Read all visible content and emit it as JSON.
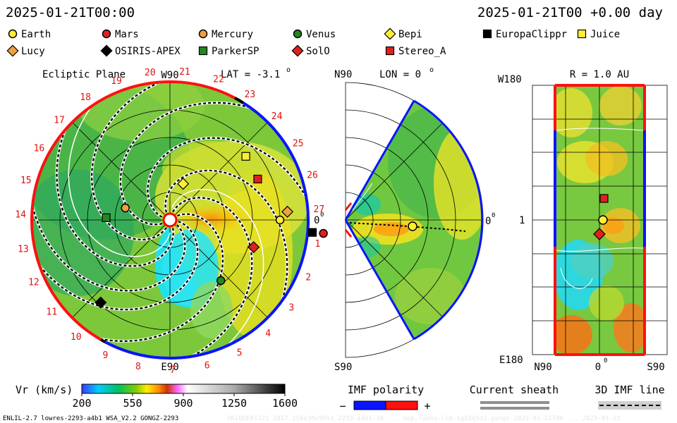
{
  "header": {
    "datetime_left": "2025-01-21T00:00",
    "datetime_right": "2025-01-21T00 +0.00 day"
  },
  "legend": [
    {
      "name": "Earth",
      "marker": "circle",
      "color": "#ffee33"
    },
    {
      "name": "Mars",
      "marker": "circle",
      "color": "#e02020"
    },
    {
      "name": "Mercury",
      "marker": "circle",
      "color": "#f0a040"
    },
    {
      "name": "Venus",
      "marker": "circle",
      "color": "#228822"
    },
    {
      "name": "Bepi",
      "marker": "diamond",
      "color": "#ffee33"
    },
    {
      "name": "EuropaClippr",
      "marker": "square",
      "color": "#000000"
    },
    {
      "name": "Juice",
      "marker": "square",
      "color": "#ffee33"
    },
    {
      "name": "Lucy",
      "marker": "diamond",
      "color": "#f0a040"
    },
    {
      "name": "OSIRIS-APEX",
      "marker": "diamond",
      "color": "#000000"
    },
    {
      "name": "ParkerSP",
      "marker": "square",
      "color": "#228822"
    },
    {
      "name": "SolO",
      "marker": "diamond",
      "color": "#e02020"
    },
    {
      "name": "Stereo_A",
      "marker": "square",
      "color": "#e02020"
    }
  ],
  "panels": {
    "ecliptic": {
      "title": "Ecliptic Plane",
      "top_label": "W90",
      "bottom_label": "E90",
      "right_label": "0",
      "lat_label": "LAT = -3.1",
      "carrington_ticks": [
        "19",
        "20",
        "21",
        "22",
        "23",
        "24",
        "25",
        "26",
        "27",
        "1",
        "2",
        "3",
        "4",
        "5",
        "6",
        "7",
        "8",
        "9",
        "10",
        "11",
        "12",
        "13",
        "14",
        "15",
        "16",
        "17",
        "18"
      ]
    },
    "meridional": {
      "top_label": "N90",
      "bottom_label": "S90",
      "lon_label": "LON = 0",
      "right_label": "0"
    },
    "map": {
      "title": "R = 1.0 AU",
      "top_left": "W180",
      "bottom_left": "E180",
      "mid_left": "1",
      "bottom_axis": [
        "N90",
        "0",
        "S90"
      ]
    }
  },
  "colorbar": {
    "label": "Vr (km/s)",
    "ticks": [
      "200",
      "550",
      "900",
      "1250",
      "1600"
    ]
  },
  "imf": {
    "label": "IMF polarity",
    "minus": "−",
    "plus": "+",
    "neg_color": "#0a14ff",
    "pos_color": "#ff1010"
  },
  "sheath": {
    "label": "Current sheath"
  },
  "imfline": {
    "label": "3D IMF line"
  },
  "footer": {
    "left": "ENLIL-2.7 lowres-2293-a4b1 WSA_V2.2 GONGZ-2293",
    "faint": "UNIQUE01221 1817 256x30x90x1 2293-a4b1-16 ... nep,lunns-lcd-1g53q5d2.gongz-2025-01-21T00 ... 2025-01-22"
  },
  "chart_data": {
    "type": "heatmap",
    "quantity": "Vr (km/s)",
    "color_scale": {
      "min": 200,
      "max": 1600,
      "ticks": [
        200,
        550,
        900,
        1250,
        1600
      ]
    },
    "ecliptic_bodies": [
      {
        "name": "Earth",
        "r_au": 1.0,
        "lon_deg": 0
      },
      {
        "name": "Mars",
        "r_au": 1.4,
        "lon_deg": -5
      },
      {
        "name": "Mercury",
        "r_au": 0.42,
        "lon_deg": 165
      },
      {
        "name": "Venus",
        "r_au": 0.72,
        "lon_deg": -50
      },
      {
        "name": "Bepi",
        "r_au": 0.35,
        "lon_deg": 70
      },
      {
        "name": "EuropaClippr",
        "r_au": 1.3,
        "lon_deg": -5
      },
      {
        "name": "Juice",
        "r_au": 0.9,
        "lon_deg": 40
      },
      {
        "name": "Lucy",
        "r_au": 1.07,
        "lon_deg": 4
      },
      {
        "name": "OSIRIS-APEX",
        "r_au": 0.98,
        "lon_deg": -130
      },
      {
        "name": "ParkerSP",
        "r_au": 0.58,
        "lon_deg": 178
      },
      {
        "name": "SolO",
        "r_au": 0.8,
        "lon_deg": -18
      },
      {
        "name": "Stereo_A",
        "r_au": 0.88,
        "lon_deg": 25
      }
    ]
  }
}
